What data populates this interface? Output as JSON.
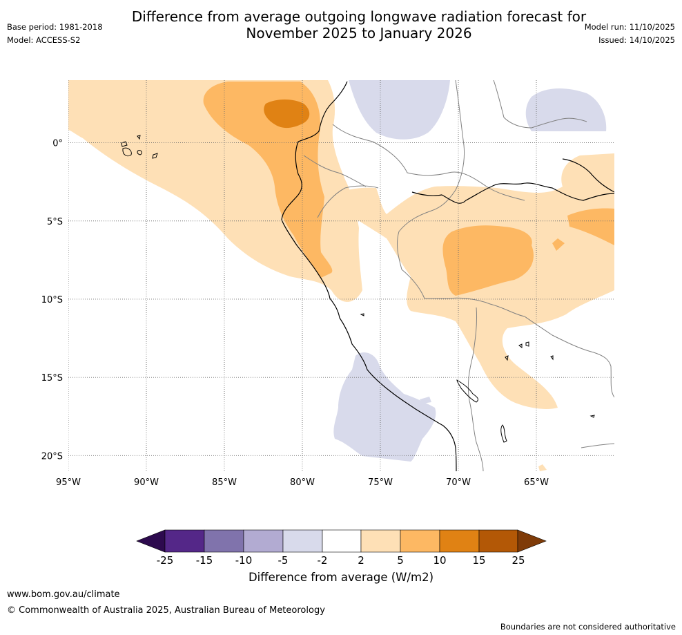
{
  "header": {
    "title_line1": "Difference from average outgoing longwave radiation forecast for",
    "title_line2": "November 2025 to January 2026",
    "base_period": "Base period: 1981-2018",
    "model": "Model: ACCESS-S2",
    "model_run": "Model run: 11/10/2025",
    "issued": "Issued: 14/10/2025"
  },
  "map": {
    "longitude_labels": [
      "95°W",
      "90°W",
      "85°W",
      "80°W",
      "75°W",
      "70°W",
      "65°W"
    ],
    "latitude_labels": [
      "0°",
      "5°S",
      "10°S",
      "15°S",
      "20°S"
    ],
    "lon_range": [
      -95,
      -60
    ],
    "lat_range": [
      -21,
      4
    ]
  },
  "colorbar": {
    "label": "Difference from average (W/m2)",
    "ticks": [
      "-25",
      "-15",
      "-10",
      "-5",
      "-2",
      "2",
      "5",
      "10",
      "15",
      "25"
    ],
    "colors": {
      "below_min": "#2d0a4e",
      "m25_m15": "#542788",
      "m15_m10": "#8073ac",
      "m10_m5": "#b2abd2",
      "m5_m2": "#d8daeb",
      "m2_p2": "#ffffff",
      "p2_p5": "#fee0b6",
      "p5_p10": "#fdb863",
      "p10_p15": "#e08214",
      "p15_p25": "#b35806",
      "above_max": "#7f3b08"
    }
  },
  "footer": {
    "website": "www.bom.gov.au/climate",
    "copyright": "© Commonwealth of Australia 2025, Australian Bureau of Meteorology",
    "disclaimer": "Boundaries are not considered authoritative"
  }
}
